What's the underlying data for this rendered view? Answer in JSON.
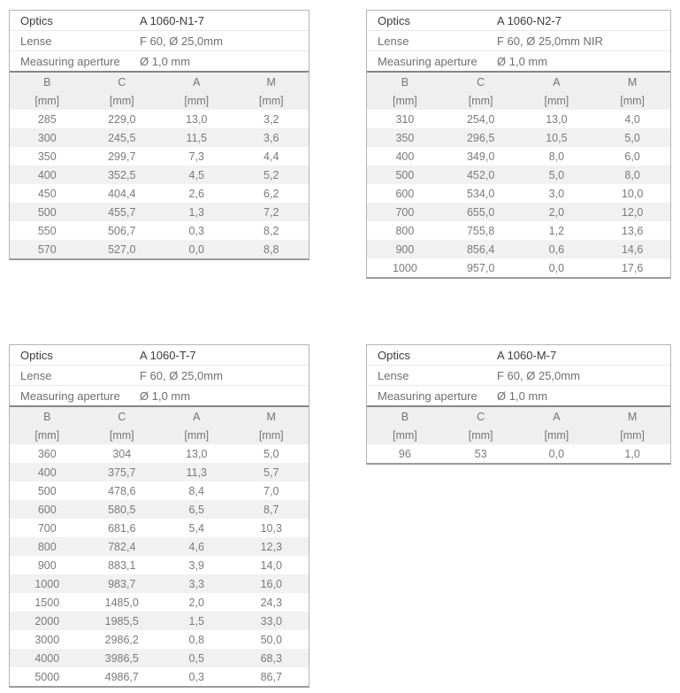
{
  "theme": {
    "page_bg": "#ffffff",
    "table_border": "#b4b4b4",
    "section_divider": "#868686",
    "table_bottom_border": "#9b9b9b",
    "column_header_bg": "#efefef",
    "row_stripe_bg": "#f1f1f1",
    "text_dark": "#3c3c3c",
    "text_gray": "#6f6f6f",
    "data_text": "#7a7a7a"
  },
  "tables": [
    {
      "id": "a1060-n1-7",
      "info": [
        {
          "label": "Optics",
          "value": "A 1060-N1-7"
        },
        {
          "label": "Lense",
          "value": "F 60, Ø 25,0mm"
        },
        {
          "label": "Measuring aperture",
          "value": "Ø 1,0 mm"
        }
      ],
      "columns": [
        "B",
        "C",
        "A",
        "M"
      ],
      "units": [
        "[mm]",
        "[mm]",
        "[mm]",
        "[mm]"
      ],
      "rows": [
        [
          "285",
          "229,0",
          "13,0",
          "3,2"
        ],
        [
          "300",
          "245,5",
          "11,5",
          "3,6"
        ],
        [
          "350",
          "299,7",
          "7,3",
          "4,4"
        ],
        [
          "400",
          "352,5",
          "4,5",
          "5,2"
        ],
        [
          "450",
          "404,4",
          "2,6",
          "6,2"
        ],
        [
          "500",
          "455,7",
          "1,3",
          "7,2"
        ],
        [
          "550",
          "506,7",
          "0,3",
          "8,2"
        ],
        [
          "570",
          "527,0",
          "0,0",
          "8,8"
        ]
      ]
    },
    {
      "id": "a1060-n2-7",
      "info": [
        {
          "label": "Optics",
          "value": "A 1060-N2-7"
        },
        {
          "label": "Lense",
          "value": "F 60, Ø 25,0mm NIR"
        },
        {
          "label": "Measuring aperture",
          "value": "Ø 1,0 mm"
        }
      ],
      "columns": [
        "B",
        "C",
        "A",
        "M"
      ],
      "units": [
        "[mm]",
        "[mm]",
        "[mm]",
        "[mm]"
      ],
      "rows": [
        [
          "310",
          "254,0",
          "13,0",
          "4,0"
        ],
        [
          "350",
          "296,5",
          "10,5",
          "5,0"
        ],
        [
          "400",
          "349,0",
          "8,0",
          "6,0"
        ],
        [
          "500",
          "452,0",
          "5,0",
          "8,0"
        ],
        [
          "600",
          "534,0",
          "3,0",
          "10,0"
        ],
        [
          "700",
          "655,0",
          "2,0",
          "12,0"
        ],
        [
          "800",
          "755,8",
          "1,2",
          "13,6"
        ],
        [
          "900",
          "856,4",
          "0,6",
          "14,6"
        ],
        [
          "1000",
          "957,0",
          "0,0",
          "17,6"
        ]
      ]
    },
    {
      "id": "a1060-t-7",
      "info": [
        {
          "label": "Optics",
          "value": "A 1060-T-7"
        },
        {
          "label": "Lense",
          "value": "F 60, Ø 25,0mm"
        },
        {
          "label": "Measuring aperture",
          "value": "Ø 1,0 mm"
        }
      ],
      "columns": [
        "B",
        "C",
        "A",
        "M"
      ],
      "units": [
        "[mm]",
        "[mm]",
        "[mm]",
        "[mm]"
      ],
      "rows": [
        [
          "360",
          "304",
          "13,0",
          "5,0"
        ],
        [
          "400",
          "375,7",
          "11,3",
          "5,7"
        ],
        [
          "500",
          "478,6",
          "8,4",
          "7,0"
        ],
        [
          "600",
          "580,5",
          "6,5",
          "8,7"
        ],
        [
          "700",
          "681,6",
          "5,4",
          "10,3"
        ],
        [
          "800",
          "782,4",
          "4,6",
          "12,3"
        ],
        [
          "900",
          "883,1",
          "3,9",
          "14,0"
        ],
        [
          "1000",
          "983,7",
          "3,3",
          "16,0"
        ],
        [
          "1500",
          "1485,0",
          "2,0",
          "24,3"
        ],
        [
          "2000",
          "1985,5",
          "1,5",
          "33,0"
        ],
        [
          "3000",
          "2986,2",
          "0,8",
          "50,0"
        ],
        [
          "4000",
          "3986,5",
          "0,5",
          "68,3"
        ],
        [
          "5000",
          "4986,7",
          "0,3",
          "86,7"
        ]
      ]
    },
    {
      "id": "a1060-m-7",
      "info": [
        {
          "label": "Optics",
          "value": "A 1060-M-7"
        },
        {
          "label": "Lense",
          "value": "F 60, Ø 25,0mm"
        },
        {
          "label": "Measuring aperture",
          "value": "Ø 1,0 mm"
        }
      ],
      "columns": [
        "B",
        "C",
        "A",
        "M"
      ],
      "units": [
        "[mm]",
        "[mm]",
        "[mm]",
        "[mm]"
      ],
      "rows": [
        [
          "96",
          "53",
          "0,0",
          "1,0"
        ]
      ]
    }
  ]
}
